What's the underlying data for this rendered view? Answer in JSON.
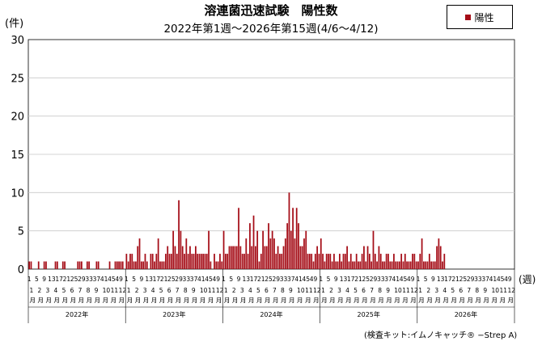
{
  "title": "溶連菌迅速試験　陽性数",
  "subtitle": "2022年第1週～2026年第15週(4/6～4/12)",
  "legend": {
    "label": "陽性",
    "color": "#a50d17"
  },
  "unit_left": "(件)",
  "unit_right": "(週)",
  "source": "(検査キット:イムノキャッチ® −Strep A)",
  "chart_data": {
    "type": "bar",
    "title": "溶連菌迅速試験　陽性数",
    "subtitle": "2022年第1週～2026年第15週(4/6～4/12)",
    "ylabel": "(件)",
    "xlabel": "(週)",
    "ylim": [
      0,
      30
    ],
    "yticks": [
      0,
      5,
      10,
      15,
      20,
      25,
      30
    ],
    "grid": true,
    "legend_position": "top-right",
    "series": [
      {
        "name": "陽性",
        "color": "#a50d17",
        "years": [
          {
            "year": "2022年",
            "weeks": 52,
            "values": [
              1,
              1,
              0,
              0,
              0,
              1,
              0,
              0,
              1,
              1,
              0,
              0,
              0,
              0,
              1,
              1,
              0,
              0,
              1,
              1,
              0,
              0,
              0,
              0,
              0,
              0,
              1,
              1,
              1,
              0,
              0,
              1,
              1,
              0,
              0,
              0,
              1,
              1,
              0,
              0,
              0,
              0,
              0,
              1,
              0,
              0,
              1,
              1,
              1,
              1,
              1,
              0
            ]
          },
          {
            "year": "2023年",
            "weeks": 52,
            "values": [
              2,
              1,
              2,
              2,
              1,
              1,
              3,
              4,
              1,
              1,
              2,
              1,
              0,
              2,
              2,
              1,
              2,
              4,
              1,
              1,
              1,
              2,
              3,
              2,
              2,
              5,
              3,
              2,
              9,
              5,
              3,
              2,
              4,
              2,
              3,
              2,
              2,
              3,
              2,
              2,
              2,
              2,
              2,
              2,
              5,
              1,
              0,
              2,
              1,
              1,
              2,
              1
            ]
          },
          {
            "year": "2024年",
            "weeks": 52,
            "values": [
              5,
              2,
              2,
              3,
              3,
              3,
              3,
              3,
              8,
              3,
              2,
              2,
              4,
              2,
              6,
              3,
              7,
              3,
              5,
              1,
              2,
              5,
              3,
              3,
              6,
              4,
              5,
              4,
              2,
              3,
              2,
              2,
              3,
              4,
              6,
              10,
              5,
              8,
              4,
              8,
              6,
              3,
              3,
              4,
              5,
              2,
              2,
              2,
              1,
              2,
              3,
              2
            ]
          },
          {
            "year": "2025年",
            "weeks": 52,
            "values": [
              4,
              2,
              1,
              2,
              2,
              2,
              1,
              2,
              1,
              1,
              2,
              1,
              2,
              2,
              3,
              1,
              2,
              1,
              1,
              2,
              1,
              1,
              2,
              3,
              1,
              3,
              2,
              1,
              5,
              2,
              1,
              3,
              2,
              1,
              1,
              2,
              2,
              1,
              1,
              2,
              1,
              1,
              1,
              2,
              1,
              2,
              1,
              1,
              1,
              2,
              2,
              1
            ]
          },
          {
            "year": "2026年",
            "weeks": 52,
            "values": [
              1,
              2,
              4,
              1,
              1,
              1,
              2,
              1,
              1,
              1,
              3,
              4,
              3,
              1,
              2
            ]
          }
        ]
      }
    ],
    "week_ticks": [
      "1",
      "5",
      "9",
      "13",
      "17",
      "21",
      "25",
      "29",
      "33",
      "37",
      "41",
      "45",
      "49"
    ],
    "month_ticks": [
      "1",
      "2",
      "3",
      "4",
      "5",
      "6",
      "7",
      "8",
      "9",
      "10",
      "11",
      "12"
    ],
    "month_label": "月",
    "year_labels": [
      "2022年",
      "2023年",
      "2024年",
      "2025年",
      "2026年"
    ]
  }
}
